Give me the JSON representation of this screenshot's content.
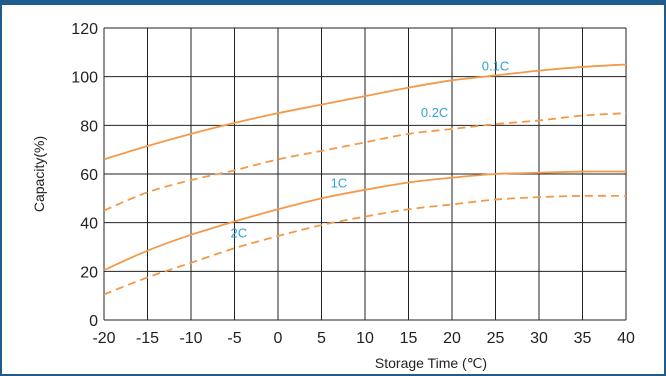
{
  "chart_data": {
    "type": "line",
    "title": "",
    "xlabel": "Storage Time (℃)",
    "ylabel": "Capacity(%)",
    "xlim": [
      -20,
      40
    ],
    "ylim": [
      0,
      120
    ],
    "x_ticks": [
      -20,
      -15,
      -10,
      -5,
      0,
      5,
      10,
      15,
      20,
      25,
      30,
      35,
      40
    ],
    "y_ticks": [
      0,
      20,
      40,
      60,
      80,
      100,
      120
    ],
    "grid": true,
    "legend": "inline labels",
    "line_color": "#f39a4a",
    "label_color": "#2ea3d8",
    "grid_color": "#222222",
    "series": [
      {
        "name": "0.1C",
        "style": "solid",
        "label_at": [
          25,
          102.5
        ],
        "x": [
          -20,
          -15,
          -10,
          -5,
          0,
          5,
          10,
          15,
          20,
          25,
          30,
          35,
          40
        ],
        "values": [
          66,
          71.5,
          76.5,
          81,
          85,
          88.5,
          92,
          95.5,
          98.5,
          100.5,
          102.5,
          104,
          105
        ]
      },
      {
        "name": "0.2C",
        "style": "dashed",
        "label_at": [
          18,
          83.5
        ],
        "x": [
          -20,
          -15,
          -10,
          -5,
          0,
          5,
          10,
          15,
          20,
          25,
          30,
          35,
          40
        ],
        "values": [
          45,
          52.5,
          57.5,
          61.5,
          66,
          69.5,
          73,
          76.5,
          78.5,
          80.5,
          82,
          84,
          85
        ]
      },
      {
        "name": "1C",
        "style": "solid",
        "label_at": [
          7,
          54.5
        ],
        "x": [
          -20,
          -15,
          -10,
          -5,
          0,
          5,
          10,
          15,
          20,
          25,
          30,
          35,
          40
        ],
        "values": [
          20.5,
          28.5,
          35,
          40.5,
          45.5,
          50,
          53.5,
          56.5,
          58.5,
          60,
          60.5,
          61,
          61
        ]
      },
      {
        "name": "2C",
        "style": "dashed",
        "label_at": [
          -4.5,
          34
        ],
        "x": [
          -20,
          -15,
          -10,
          -5,
          0,
          5,
          10,
          15,
          20,
          25,
          30,
          35,
          40
        ],
        "values": [
          10.5,
          17.5,
          23.5,
          29.5,
          34.5,
          39,
          42.5,
          45.5,
          47.5,
          49.5,
          50.5,
          51,
          51
        ]
      }
    ]
  }
}
